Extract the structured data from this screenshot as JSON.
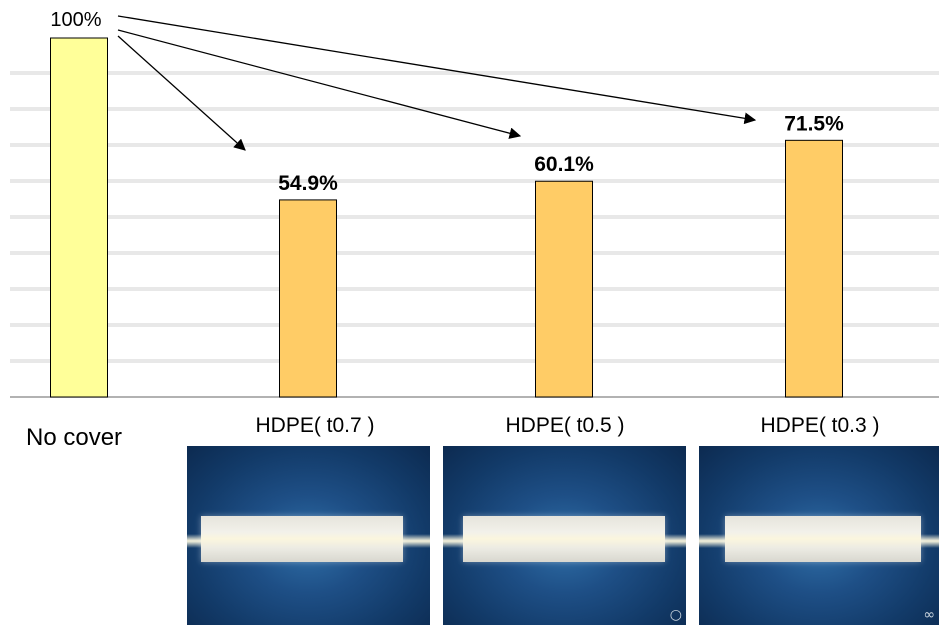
{
  "chart_data": {
    "type": "bar",
    "categories": [
      "No cover",
      "HDPE( t0.7 )",
      "HDPE( t0.5 )",
      "HDPE( t0.3 )"
    ],
    "values": [
      100,
      54.9,
      60.1,
      71.5
    ],
    "data_labels": [
      "100%",
      "54.9%",
      "60.1%",
      "71.5%"
    ],
    "ylim": [
      0,
      100
    ],
    "grid": true,
    "colors": [
      "#ffff99",
      "#ffcc66",
      "#ffcc66",
      "#ffcc66"
    ],
    "bar_edge_color": "#000000",
    "grid_color": "#e8e8e8",
    "annotations": "arrows from the 100% bar to each HDPE bar"
  },
  "photos": [
    {
      "icon": "light-strip-photo",
      "background": "#1e4f86"
    },
    {
      "icon": "light-strip-photo",
      "background": "#1e4f86"
    },
    {
      "icon": "light-strip-photo",
      "background": "#1e4f86"
    }
  ]
}
